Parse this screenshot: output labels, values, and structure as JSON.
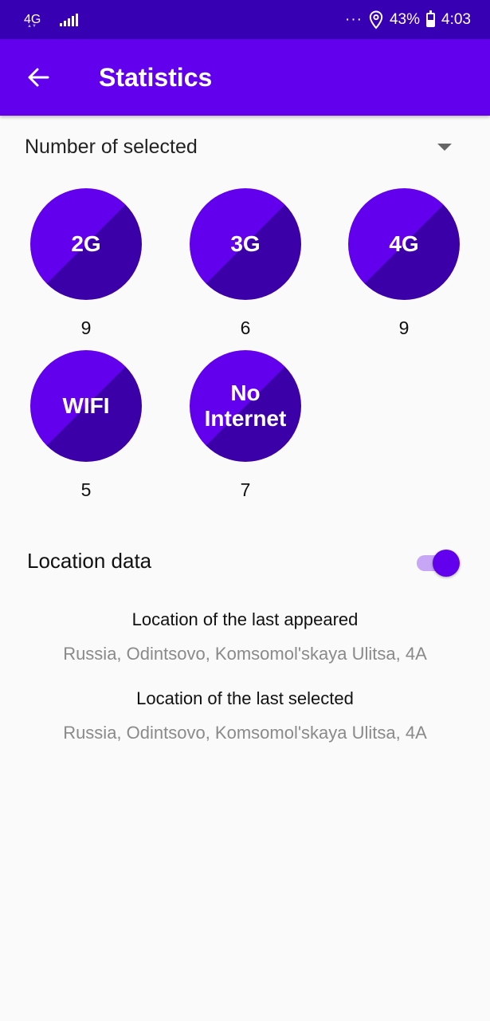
{
  "status_bar": {
    "network": "4G",
    "dots": "···",
    "battery": "43%",
    "time": "4:03"
  },
  "app_bar": {
    "title": "Statistics"
  },
  "selector": {
    "label": "Number of selected"
  },
  "stats": [
    {
      "label": "2G",
      "count": "9"
    },
    {
      "label": "3G",
      "count": "6"
    },
    {
      "label": "4G",
      "count": "9"
    },
    {
      "label": "WIFI",
      "count": "5"
    },
    {
      "label_line1": "No",
      "label_line2": "Internet",
      "count": "7"
    }
  ],
  "location": {
    "label": "Location data",
    "enabled": true,
    "last_appeared_title": "Location of the last appeared",
    "last_appeared_value": "Russia, Odintsovo, Komsomol'skaya Ulitsa, 4A",
    "last_selected_title": "Location of the last selected",
    "last_selected_value": "Russia, Odintsovo, Komsomol'skaya Ulitsa, 4A"
  },
  "colors": {
    "primary": "#6200ee",
    "primary_dark": "#3700b3",
    "circle_dark": "#3c00a8"
  }
}
